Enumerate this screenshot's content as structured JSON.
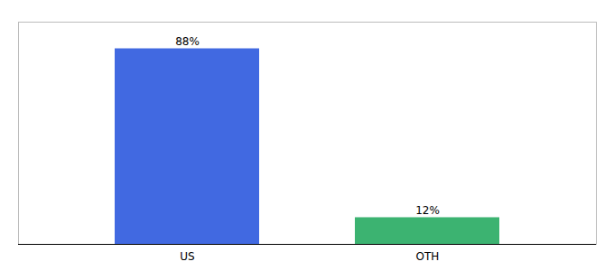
{
  "chart_data": {
    "type": "bar",
    "categories": [
      "US",
      "OTH"
    ],
    "values": [
      88,
      12
    ],
    "value_labels": [
      "88%",
      "12%"
    ],
    "colors": [
      "#4169E1",
      "#3CB371"
    ],
    "ylim": [
      0,
      100
    ],
    "data_labels": true,
    "tick_labels": "x"
  }
}
